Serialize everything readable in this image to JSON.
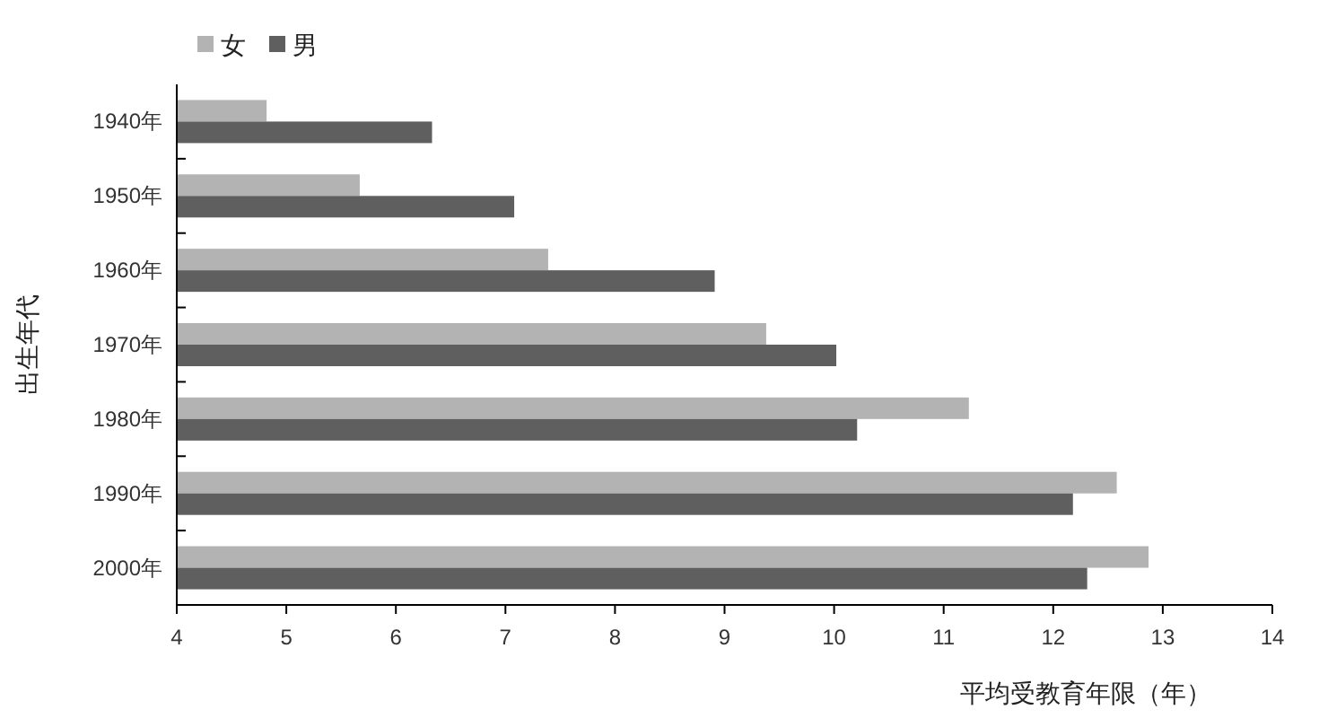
{
  "chart_data": {
    "type": "bar",
    "orientation": "horizontal",
    "xlabel": "平均受教育年限（年）",
    "ylabel": "出生年代",
    "categories": [
      "1940年",
      "1950年",
      "1960年",
      "1970年",
      "1980年",
      "1990年",
      "2000年"
    ],
    "series": [
      {
        "name": "女",
        "color": "#b3b3b3",
        "values": [
          4.82,
          5.67,
          7.39,
          9.38,
          11.23,
          12.58,
          12.87
        ]
      },
      {
        "name": "男",
        "color": "#5f5f5f",
        "values": [
          6.33,
          7.08,
          8.91,
          10.02,
          10.21,
          12.18,
          12.31
        ]
      }
    ],
    "xlim": [
      4,
      14
    ],
    "xticks": [
      4,
      5,
      6,
      7,
      8,
      9,
      10,
      11,
      12,
      13,
      14
    ],
    "grid": false,
    "legend": "top left"
  }
}
